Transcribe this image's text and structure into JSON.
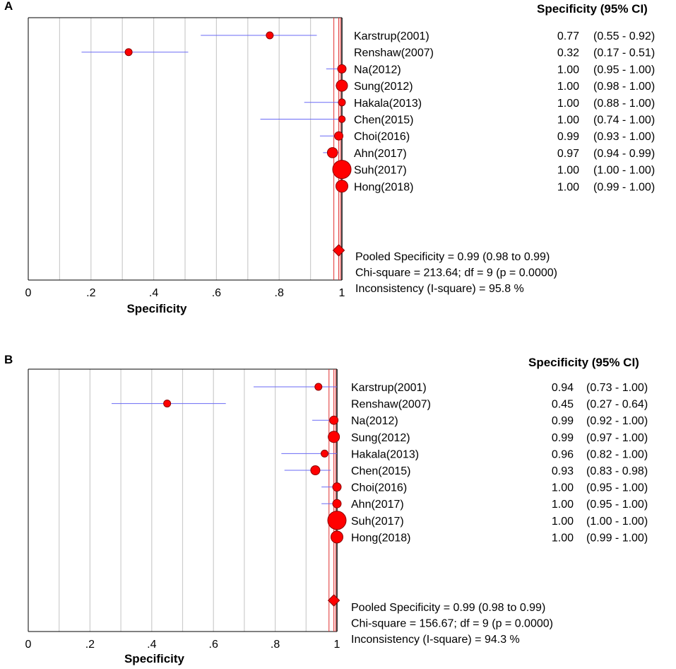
{
  "chart_data": [
    {
      "type": "forest",
      "panel": "A",
      "header": "Specificity (95% CI)",
      "xlabel": "Specificity",
      "xlim": [
        0,
        1
      ],
      "ticks": [
        0,
        0.2,
        0.4,
        0.6,
        0.8,
        1
      ],
      "tick_labels": [
        "0",
        ".2",
        ".4",
        ".6",
        ".8",
        "1"
      ],
      "studies": [
        {
          "name": "Karstrup(2001)",
          "est": 0.77,
          "lo": 0.55,
          "hi": 0.92,
          "est_label": "0.77",
          "ci_label": "(0.55 - 0.92)",
          "weight": 1.0
        },
        {
          "name": "Renshaw(2007)",
          "est": 0.32,
          "lo": 0.17,
          "hi": 0.51,
          "est_label": "0.32",
          "ci_label": "(0.17 - 0.51)",
          "weight": 1.0
        },
        {
          "name": "Na(2012)",
          "est": 1.0,
          "lo": 0.95,
          "hi": 1.0,
          "est_label": "1.00",
          "ci_label": "(0.95 - 1.00)",
          "weight": 1.2
        },
        {
          "name": "Sung(2012)",
          "est": 1.0,
          "lo": 0.98,
          "hi": 1.0,
          "est_label": "1.00",
          "ci_label": "(0.98 - 1.00)",
          "weight": 1.6
        },
        {
          "name": "Hakala(2013)",
          "est": 1.0,
          "lo": 0.88,
          "hi": 1.0,
          "est_label": "1.00",
          "ci_label": "(0.88 - 1.00)",
          "weight": 1.0
        },
        {
          "name": "Chen(2015)",
          "est": 1.0,
          "lo": 0.74,
          "hi": 1.0,
          "est_label": "1.00",
          "ci_label": "(0.74 - 1.00)",
          "weight": 0.95
        },
        {
          "name": "Choi(2016)",
          "est": 0.99,
          "lo": 0.93,
          "hi": 1.0,
          "est_label": "0.99",
          "ci_label": "(0.93 - 1.00)",
          "weight": 1.2
        },
        {
          "name": "Ahn(2017)",
          "est": 0.97,
          "lo": 0.94,
          "hi": 0.99,
          "est_label": "0.97",
          "ci_label": "(0.94 - 0.99)",
          "weight": 1.45
        },
        {
          "name": "Suh(2017)",
          "est": 1.0,
          "lo": 1.0,
          "hi": 1.0,
          "est_label": "1.00",
          "ci_label": "(1.00 - 1.00)",
          "weight": 2.6
        },
        {
          "name": "Hong(2018)",
          "est": 1.0,
          "lo": 0.99,
          "hi": 1.0,
          "est_label": "1.00",
          "ci_label": "(0.99 - 1.00)",
          "weight": 1.7
        }
      ],
      "pooled": {
        "est": 0.99,
        "lo": 0.98,
        "hi": 0.99
      },
      "stats": [
        "Pooled Specificity = 0.99 (0.98 to 0.99)",
        "Chi-square = 213.64; df =  9 (p = 0.0000)",
        "Inconsistency (I-square) = 95.8 %"
      ]
    },
    {
      "type": "forest",
      "panel": "B",
      "header": "Specificity (95% CI)",
      "xlabel": "Specificity",
      "xlim": [
        0,
        1
      ],
      "ticks": [
        0,
        0.2,
        0.4,
        0.6,
        0.8,
        1
      ],
      "tick_labels": [
        "0",
        ".2",
        ".4",
        ".6",
        ".8",
        "1"
      ],
      "studies": [
        {
          "name": "Karstrup(2001)",
          "est": 0.94,
          "lo": 0.73,
          "hi": 1.0,
          "est_label": "0.94",
          "ci_label": "(0.73 - 1.00)",
          "weight": 1.0
        },
        {
          "name": "Renshaw(2007)",
          "est": 0.45,
          "lo": 0.27,
          "hi": 0.64,
          "est_label": "0.45",
          "ci_label": "(0.27 - 0.64)",
          "weight": 1.0
        },
        {
          "name": "Na(2012)",
          "est": 0.99,
          "lo": 0.92,
          "hi": 1.0,
          "est_label": "0.99",
          "ci_label": "(0.92 - 1.00)",
          "weight": 1.2
        },
        {
          "name": "Sung(2012)",
          "est": 0.99,
          "lo": 0.97,
          "hi": 1.0,
          "est_label": "0.99",
          "ci_label": "(0.97 - 1.00)",
          "weight": 1.6
        },
        {
          "name": "Hakala(2013)",
          "est": 0.96,
          "lo": 0.82,
          "hi": 1.0,
          "est_label": "0.96",
          "ci_label": "(0.82 - 1.00)",
          "weight": 1.0
        },
        {
          "name": "Chen(2015)",
          "est": 0.93,
          "lo": 0.83,
          "hi": 0.98,
          "est_label": "0.93",
          "ci_label": "(0.83 - 0.98)",
          "weight": 1.3
        },
        {
          "name": "Choi(2016)",
          "est": 1.0,
          "lo": 0.95,
          "hi": 1.0,
          "est_label": "1.00",
          "ci_label": "(0.95 - 1.00)",
          "weight": 1.2
        },
        {
          "name": "Ahn(2017)",
          "est": 1.0,
          "lo": 0.95,
          "hi": 1.0,
          "est_label": "1.00",
          "ci_label": "(0.95 - 1.00)",
          "weight": 1.2
        },
        {
          "name": "Suh(2017)",
          "est": 1.0,
          "lo": 1.0,
          "hi": 1.0,
          "est_label": "1.00",
          "ci_label": "(1.00 - 1.00)",
          "weight": 2.6
        },
        {
          "name": "Hong(2018)",
          "est": 1.0,
          "lo": 0.99,
          "hi": 1.0,
          "est_label": "1.00",
          "ci_label": "(0.99 - 1.00)",
          "weight": 1.7
        }
      ],
      "pooled": {
        "est": 0.99,
        "lo": 0.98,
        "hi": 0.99
      },
      "stats": [
        "Pooled Specificity = 0.99 (0.98 to 0.99)",
        "Chi-square = 156.67; df =  9 (p = 0.0000)",
        "Inconsistency (I-square) = 94.3 %"
      ]
    }
  ],
  "colors": {
    "marker_fill": "#ff0000",
    "marker_stroke": "#8b0000",
    "ci_line": "#6a6af5",
    "ref_line": "#e03030",
    "grid_line": "#cccccc",
    "frame": "#000000"
  }
}
